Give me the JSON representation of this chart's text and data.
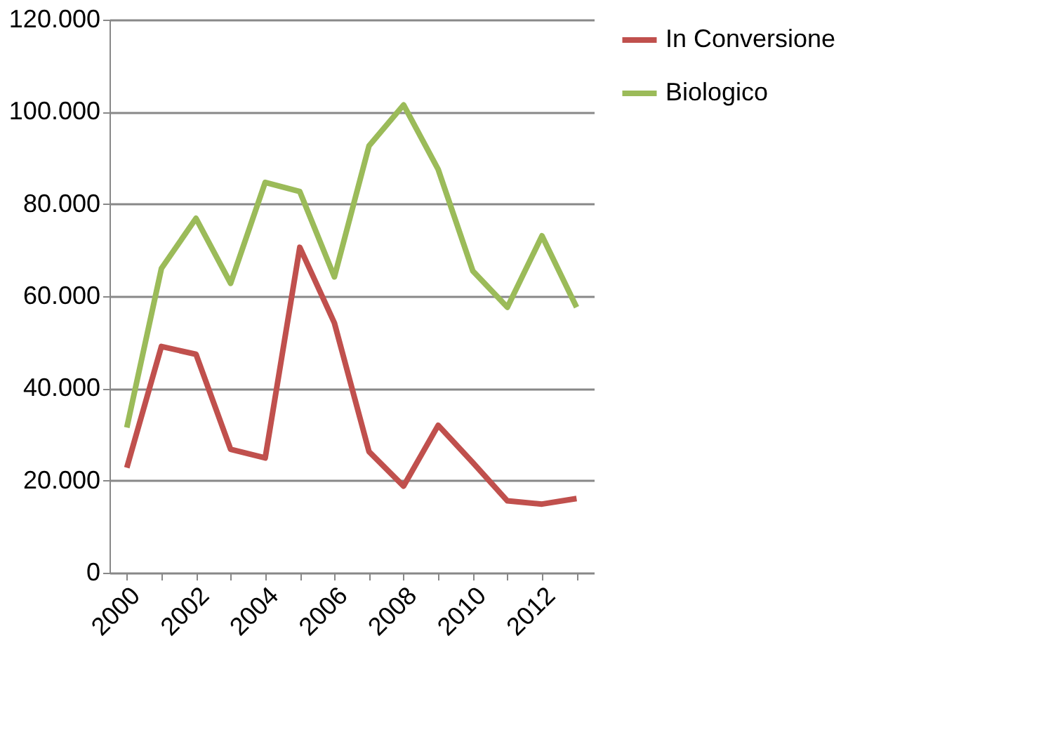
{
  "chart_data": {
    "type": "line",
    "categories": [
      "2000",
      null,
      "2002",
      null,
      "2004",
      null,
      "2006",
      null,
      "2008",
      null,
      "2010",
      null,
      "2012",
      null
    ],
    "series": [
      {
        "name": "In Conversione",
        "color": "#c0504d",
        "values": [
          22800,
          49100,
          47400,
          26800,
          24900,
          70600,
          54200,
          26300,
          18800,
          32000,
          23900,
          15600,
          14900,
          16100
        ]
      },
      {
        "name": "Biologico",
        "color": "#9bbb59",
        "values": [
          31500,
          66000,
          76900,
          62800,
          84700,
          82700,
          64200,
          92600,
          101500,
          87500,
          65500,
          57600,
          73100,
          57600
        ]
      }
    ],
    "ylim": [
      0,
      120000
    ],
    "yticks": [
      0,
      {
        "value": 20000,
        "label": "20.000"
      },
      {
        "value": 40000,
        "label": "40.000"
      },
      {
        "value": 60000,
        "label": "60.000"
      },
      {
        "value": 80000,
        "label": "80.000"
      },
      {
        "value": 100000,
        "label": "100.000"
      },
      {
        "value": 120000,
        "label": "120.000"
      }
    ],
    "grid": "y",
    "legend": "right",
    "marker": "none",
    "line_style": "solid"
  }
}
